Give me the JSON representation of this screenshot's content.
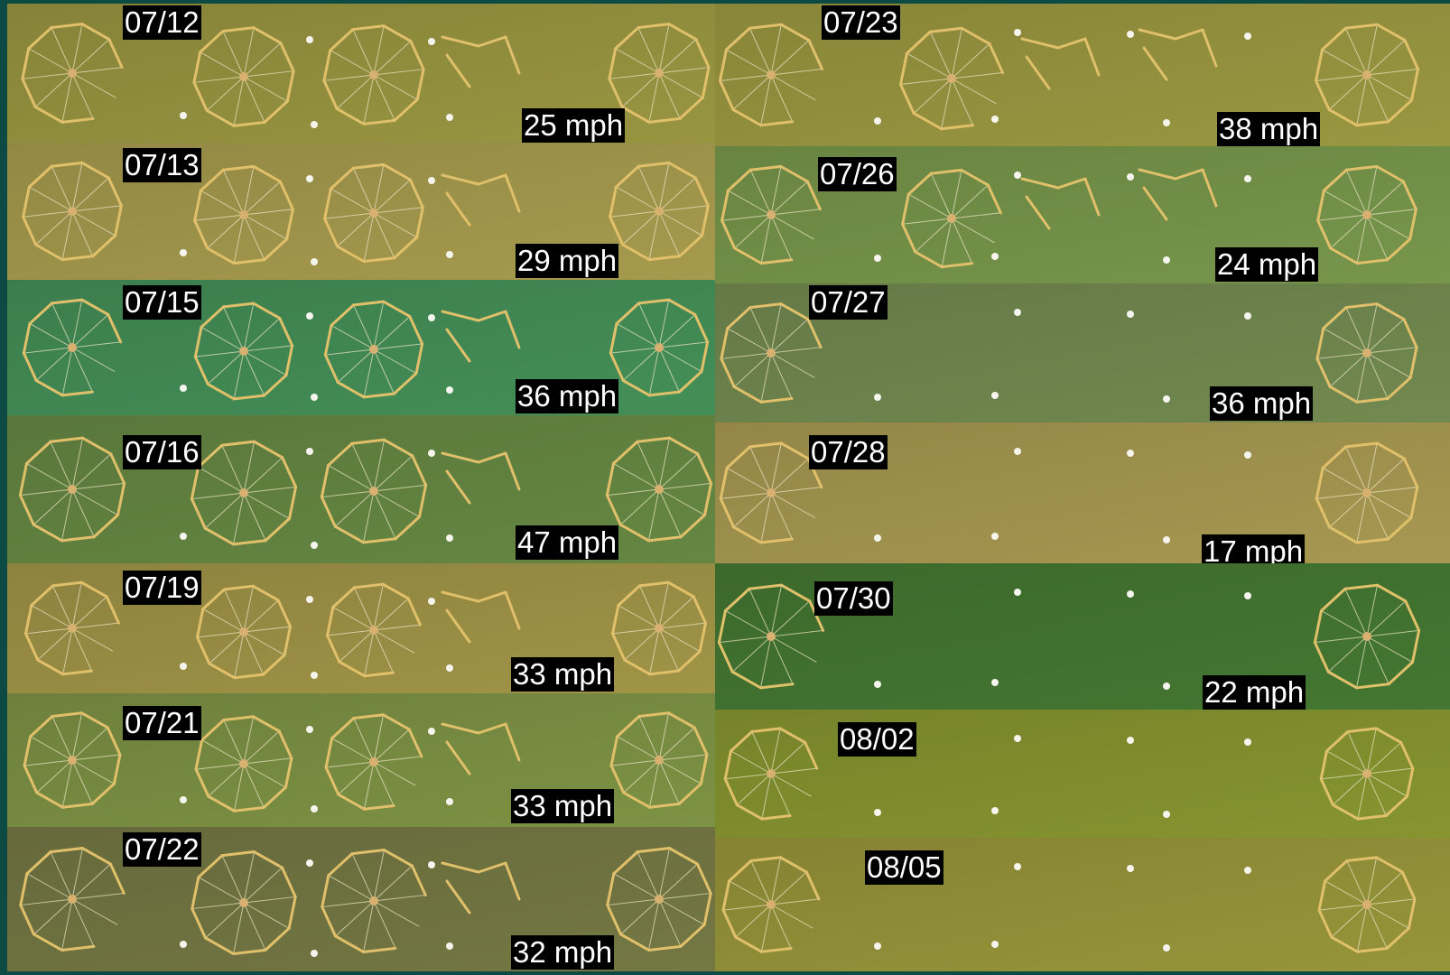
{
  "colors": {
    "frame": "#0e4a44",
    "ring": "#e0c06a",
    "spoke": "#f1e8c8",
    "buoy": "#f5f5ee",
    "label_bg": "#000000",
    "label_text": "#ffffff"
  },
  "left_column": [
    {
      "date": "07/12",
      "wind": "25 mph",
      "water": "#8d8a3c"
    },
    {
      "date": "07/13",
      "wind": "29 mph",
      "water": "#9a8f48"
    },
    {
      "date": "07/15",
      "wind": "36 mph",
      "water": "#3f8451"
    },
    {
      "date": "07/16",
      "wind": "47 mph",
      "water": "#5e7d3e"
    },
    {
      "date": "07/19",
      "wind": "33 mph",
      "water": "#948942"
    },
    {
      "date": "07/21",
      "wind": "33 mph",
      "water": "#74873f"
    },
    {
      "date": "07/22",
      "wind": "32 mph",
      "water": "#6b6f3e"
    }
  ],
  "right_column": [
    {
      "date": "07/23",
      "wind": "38 mph",
      "water": "#8f8c3c"
    },
    {
      "date": "07/26",
      "wind": "24 mph",
      "water": "#6e8b45"
    },
    {
      "date": "07/27",
      "wind": "36 mph",
      "water": "#6a7f4a"
    },
    {
      "date": "07/28",
      "wind": "17 mph",
      "water": "#9b8d4b"
    },
    {
      "date": "07/30",
      "wind": "22 mph",
      "water": "#3f6e2e"
    },
    {
      "date": "08/02",
      "wind": "",
      "water": "#7c8a2c"
    },
    {
      "date": "08/05",
      "wind": "",
      "water": "#8c8a36"
    }
  ]
}
